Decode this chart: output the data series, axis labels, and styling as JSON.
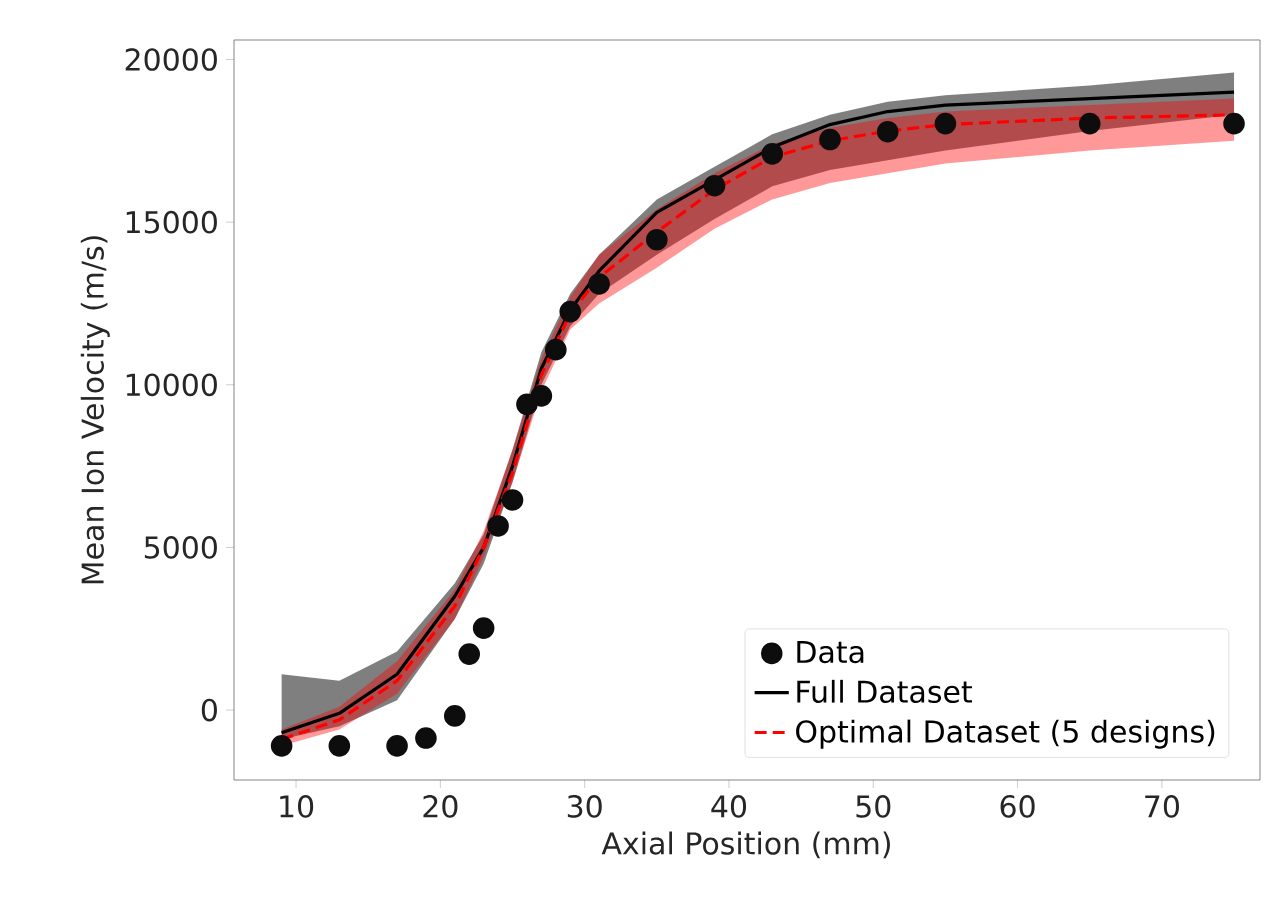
{
  "chart_data": {
    "type": "line",
    "xlabel": "Axial Position (mm)",
    "ylabel": "Mean Ion Velocity (m/s)",
    "xlim": [
      5.7,
      76.8
    ],
    "ylim": [
      -2150,
      20600
    ],
    "xticks": [
      10,
      20,
      30,
      40,
      50,
      60,
      70
    ],
    "yticks": [
      0,
      5000,
      10000,
      15000,
      20000
    ],
    "legend": "bottom right",
    "series": [
      {
        "name": "Data",
        "type": "scatter",
        "color": "#0d0d0d",
        "marker": "circle",
        "x": [
          9,
          13,
          17,
          19,
          21,
          22,
          23,
          24,
          25,
          26,
          27,
          28,
          29,
          31,
          35,
          39,
          43,
          47,
          51,
          55,
          65,
          75
        ],
        "values": [
          -1100,
          -1100,
          -1100,
          -860,
          -180,
          1720,
          2520,
          5660,
          6460,
          9400,
          9660,
          11080,
          12250,
          13100,
          14460,
          16120,
          17100,
          17540,
          17780,
          18030,
          18030,
          18030
        ]
      },
      {
        "name": "Full Dataset",
        "type": "line",
        "color": "#000000",
        "line_style": "solid",
        "x": [
          9,
          13,
          17,
          21,
          23,
          25,
          27,
          29,
          31,
          35,
          39,
          43,
          47,
          51,
          55,
          65,
          75
        ],
        "values": [
          -700,
          -100,
          1100,
          3500,
          5000,
          7500,
          10500,
          12300,
          13500,
          15300,
          16300,
          17300,
          18000,
          18400,
          18600,
          18800,
          19000
        ],
        "lower": [
          -900,
          -500,
          300,
          2800,
          4500,
          7000,
          10000,
          11800,
          12800,
          14000,
          15100,
          16100,
          16600,
          16900,
          17200,
          17800,
          18300
        ],
        "upper": [
          1100,
          900,
          1800,
          3900,
          5400,
          8000,
          11000,
          12800,
          14000,
          15700,
          16700,
          17700,
          18300,
          18700,
          18900,
          19200,
          19600
        ]
      },
      {
        "name": "Optimal Dataset (5 designs)",
        "type": "line",
        "color": "#ff0000",
        "line_style": "dashed",
        "x": [
          9,
          13,
          17,
          21,
          23,
          25,
          27,
          29,
          31,
          35,
          39,
          43,
          47,
          51,
          55,
          65,
          75
        ],
        "values": [
          -900,
          -300,
          900,
          3200,
          5000,
          7300,
          10300,
          12200,
          13300,
          14700,
          16000,
          17000,
          17500,
          17800,
          18000,
          18200,
          18300
        ],
        "lower": [
          -1100,
          -600,
          500,
          2800,
          4700,
          7000,
          9800,
          11700,
          12500,
          13600,
          14800,
          15700,
          16200,
          16500,
          16800,
          17200,
          17500
        ],
        "upper": [
          -600,
          100,
          1500,
          3700,
          5500,
          8000,
          10800,
          12700,
          14000,
          15400,
          16500,
          17400,
          17900,
          18200,
          18400,
          18600,
          18800
        ]
      }
    ]
  }
}
